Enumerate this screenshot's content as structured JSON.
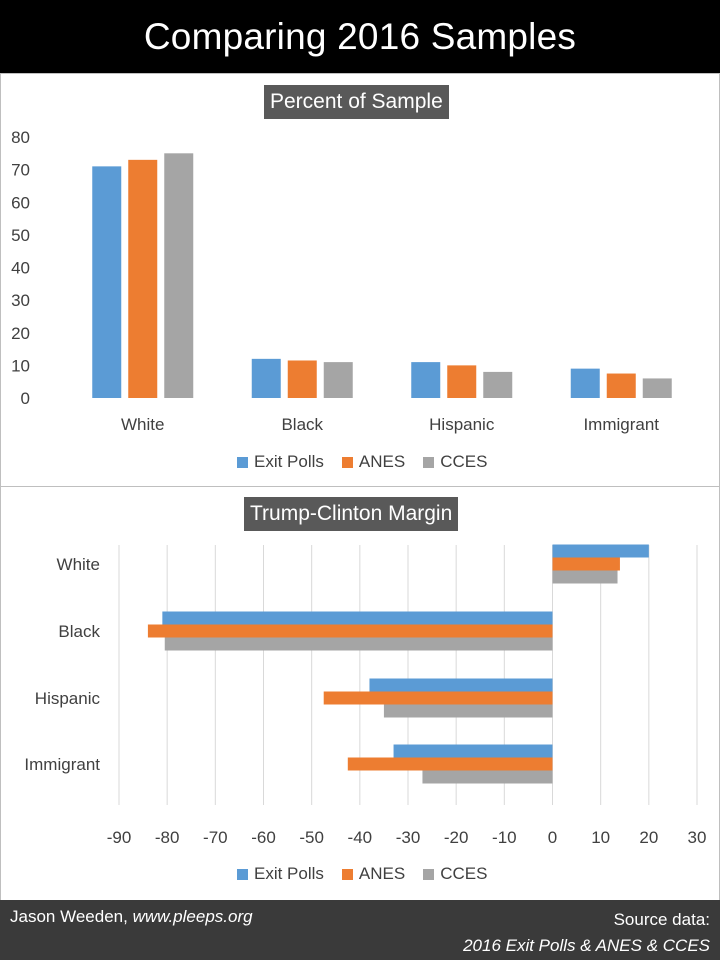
{
  "header": {
    "title": "Comparing 2016 Samples"
  },
  "colors": {
    "Exit Polls": "#5b9bd5",
    "ANES": "#ed7d31",
    "CCES": "#a5a5a5"
  },
  "chart_data": [
    {
      "type": "bar",
      "title": "Percent of Sample",
      "categories": [
        "White",
        "Black",
        "Hispanic",
        "Immigrant"
      ],
      "series": [
        {
          "name": "Exit Polls",
          "values": [
            71,
            12,
            11,
            9
          ]
        },
        {
          "name": "ANES",
          "values": [
            73,
            11.5,
            10,
            7.5
          ]
        },
        {
          "name": "CCES",
          "values": [
            75,
            11,
            8,
            6
          ]
        }
      ],
      "ylim": [
        0,
        80
      ],
      "yticks": [
        "0",
        "10",
        "20",
        "30",
        "40",
        "50",
        "60",
        "70",
        "80"
      ],
      "grid": false,
      "legend": "bottom"
    },
    {
      "type": "bar",
      "orientation": "horizontal",
      "title": "Trump-Clinton Margin",
      "categories": [
        "White",
        "Black",
        "Hispanic",
        "Immigrant"
      ],
      "series": [
        {
          "name": "Exit Polls",
          "values": [
            20,
            -81,
            -38,
            -33
          ]
        },
        {
          "name": "ANES",
          "values": [
            14,
            -84,
            -47.5,
            -42.5
          ]
        },
        {
          "name": "CCES",
          "values": [
            13.5,
            -80.5,
            -35,
            -27
          ]
        }
      ],
      "xlim": [
        -90,
        30
      ],
      "xticks": [
        "-90",
        "-80",
        "-70",
        "-60",
        "-50",
        "-40",
        "-30",
        "-20",
        "-10",
        "0",
        "10",
        "20",
        "30"
      ],
      "grid": true,
      "legend": "bottom"
    }
  ],
  "footer": {
    "author": "Jason Weeden,",
    "site": "www.pleeps.org",
    "source_label": "Source data:",
    "source_detail": "2016 Exit Polls & ANES & CCES"
  }
}
